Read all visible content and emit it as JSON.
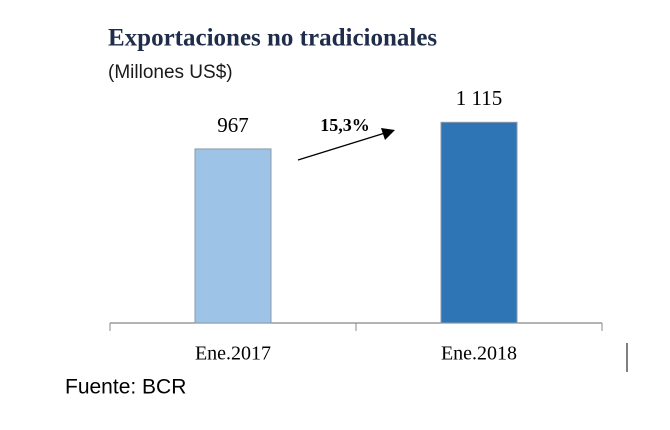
{
  "chart_data": {
    "type": "bar",
    "title": "Exportaciones no tradicionales",
    "subtitle": "(Millones US$)",
    "categories": [
      "Ene.2017",
      "Ene.2018"
    ],
    "values": [
      967,
      1115
    ],
    "value_labels": [
      "967",
      "1 115"
    ],
    "colors": [
      "#9dc3e6",
      "#2e75b6"
    ],
    "ylim": [
      0,
      1200
    ],
    "annotation": "15,3%",
    "source": "Fuente: BCR"
  }
}
